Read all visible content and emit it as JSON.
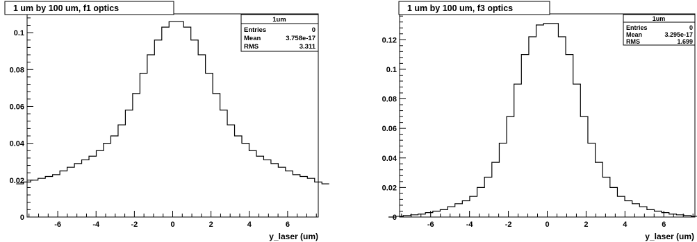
{
  "chart_data": [
    {
      "type": "histogram",
      "title": "1 um by 100 um, f1 optics",
      "xlabel": "y_laser (um)",
      "ylabel": "",
      "xlim": [
        -7.6,
        7.6
      ],
      "ylim": [
        0,
        0.1102
      ],
      "x_ticks": [
        "-6",
        "-4",
        "-2",
        "0",
        "2",
        "4",
        "6"
      ],
      "y_ticks": [
        "0",
        "0.02",
        "0.04",
        "0.06",
        "0.08",
        "0.1"
      ],
      "stats": {
        "name": "1um",
        "rows": [
          {
            "label": "Entries",
            "value": "0"
          },
          {
            "label": "Mean",
            "value": "3.758e-17"
          },
          {
            "label": "RMS",
            "value": "3.311"
          }
        ]
      },
      "bin_width": 0.38,
      "values": [
        0.018,
        0.019,
        0.02,
        0.021,
        0.022,
        0.023,
        0.025,
        0.027,
        0.029,
        0.031,
        0.033,
        0.036,
        0.04,
        0.044,
        0.05,
        0.058,
        0.067,
        0.078,
        0.088,
        0.096,
        0.103,
        0.106,
        0.106,
        0.103,
        0.096,
        0.088,
        0.078,
        0.067,
        0.058,
        0.05,
        0.044,
        0.04,
        0.036,
        0.033,
        0.031,
        0.029,
        0.027,
        0.025,
        0.023,
        0.022,
        0.021,
        0.019,
        0.018
      ],
      "grid": false
    },
    {
      "type": "histogram",
      "title": "1 um by 100 um, f3 optics",
      "xlabel": "y_laser (um)",
      "ylabel": "",
      "xlim": [
        -7.6,
        7.6
      ],
      "ylim": [
        0,
        0.1375
      ],
      "x_ticks": [
        "-6",
        "-4",
        "-2",
        "0",
        "2",
        "4",
        "6"
      ],
      "y_ticks": [
        "0",
        "0.02",
        "0.04",
        "0.06",
        "0.08",
        "0.1",
        "0.12"
      ],
      "stats": {
        "name": "1um",
        "rows": [
          {
            "label": "Entries",
            "value": "0"
          },
          {
            "label": "Mean",
            "value": "3.295e-17"
          },
          {
            "label": "RMS",
            "value": "1.699"
          }
        ]
      },
      "bin_width": 0.38,
      "values": [
        0.0,
        0.0005,
        0.001,
        0.0015,
        0.002,
        0.003,
        0.004,
        0.005,
        0.007,
        0.009,
        0.011,
        0.014,
        0.02,
        0.027,
        0.037,
        0.05,
        0.068,
        0.09,
        0.11,
        0.122,
        0.13,
        0.131,
        0.131,
        0.122,
        0.11,
        0.09,
        0.068,
        0.05,
        0.037,
        0.027,
        0.02,
        0.014,
        0.011,
        0.009,
        0.007,
        0.005,
        0.004,
        0.003,
        0.002,
        0.0015,
        0.001,
        0.0005,
        0.0
      ],
      "grid": false
    }
  ]
}
